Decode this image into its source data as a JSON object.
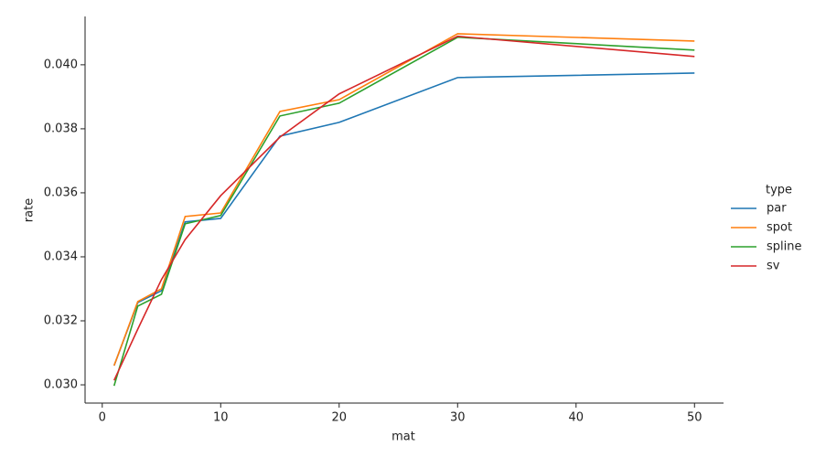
{
  "chart_data": {
    "type": "line",
    "x_label": "mat",
    "y_label": "rate",
    "legend_title": "type",
    "x": [
      1,
      3,
      5,
      7,
      10,
      15,
      20,
      30,
      50
    ],
    "series": [
      {
        "name": "par",
        "color": "#1f77b4",
        "values": [
          0.0306,
          0.03257,
          0.03294,
          0.03509,
          0.0352,
          0.03777,
          0.0382,
          0.0396,
          0.03974
        ]
      },
      {
        "name": "spot",
        "color": "#ff7f0e",
        "values": [
          0.0306,
          0.0326,
          0.033,
          0.03526,
          0.03537,
          0.03854,
          0.03891,
          0.04097,
          0.04074
        ]
      },
      {
        "name": "spline",
        "color": "#2ca02c",
        "values": [
          0.02997,
          0.03246,
          0.03283,
          0.03503,
          0.03529,
          0.0384,
          0.0388,
          0.04086,
          0.04046
        ]
      },
      {
        "name": "sv",
        "color": "#d62728",
        "values": [
          0.03014,
          0.03174,
          0.03329,
          0.03454,
          0.03591,
          0.03774,
          0.03909,
          0.04089,
          0.04026
        ]
      }
    ],
    "xlim": [
      -1.45,
      52.45
    ],
    "xticks": [
      0,
      10,
      20,
      30,
      40,
      50
    ],
    "ylim": [
      0.02943,
      0.04151
    ],
    "yticks": [
      {
        "value": 0.03,
        "label": "0.030"
      },
      {
        "value": 0.032,
        "label": "0.032"
      },
      {
        "value": 0.034,
        "label": "0.034"
      },
      {
        "value": 0.036,
        "label": "0.036"
      },
      {
        "value": 0.038,
        "label": "0.038"
      },
      {
        "value": 0.04,
        "label": "0.040"
      }
    ],
    "grid": false,
    "legend": "right"
  }
}
